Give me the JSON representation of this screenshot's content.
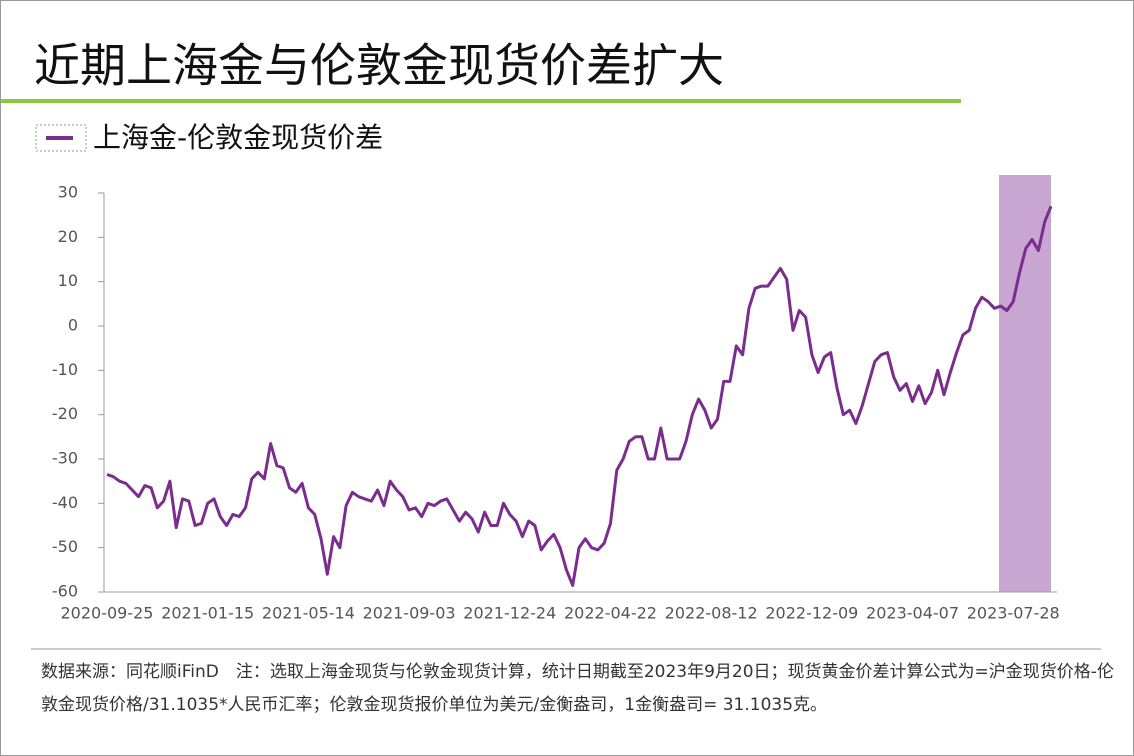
{
  "chart_data": {
    "type": "line",
    "title": "近期上海金与伦敦金现货价差扩大",
    "note": "数据来源：同花顺iFinD　注：选取上海金现货与伦敦金现货计算，统计日期截至2023年9月20日；现货黄金价差计算公式为=沪金现货价格-伦敦金现货价格/31.1035*人民币汇率；伦敦金现货报价单位为美元/金衡盎司，1金衡盎司= 31.1035克。",
    "categories": [
      "2020-09-25",
      null,
      null,
      null,
      null,
      null,
      null,
      null,
      null,
      null,
      null,
      null,
      null,
      null,
      null,
      null,
      "2021-01-15",
      null,
      null,
      null,
      null,
      null,
      null,
      null,
      null,
      null,
      null,
      null,
      null,
      null,
      null,
      null,
      "2021-05-14",
      null,
      null,
      null,
      null,
      null,
      null,
      null,
      null,
      null,
      null,
      null,
      null,
      null,
      null,
      null,
      "2021-09-03",
      null,
      null,
      null,
      null,
      null,
      null,
      null,
      null,
      null,
      null,
      null,
      null,
      null,
      null,
      null,
      "2021-12-24",
      null,
      null,
      null,
      null,
      null,
      null,
      null,
      null,
      null,
      null,
      null,
      null,
      null,
      null,
      null,
      "2022-04-22",
      null,
      null,
      null,
      null,
      null,
      null,
      null,
      null,
      null,
      null,
      null,
      null,
      null,
      null,
      null,
      "2022-08-12",
      null,
      null,
      null,
      null,
      null,
      null,
      null,
      null,
      null,
      null,
      null,
      null,
      null,
      null,
      null,
      "2022-12-09",
      null,
      null,
      null,
      null,
      null,
      null,
      null,
      null,
      null,
      null,
      null,
      null,
      null,
      null,
      null,
      "2023-04-07",
      null,
      null,
      null,
      null,
      null,
      null,
      null,
      null,
      null,
      null,
      null,
      null,
      null,
      null,
      null,
      "2023-07-28",
      null,
      null,
      null,
      null,
      null,
      null
    ],
    "series": [
      {
        "name": "上海金-伦敦金现货价差",
        "color": "#7b2d8e",
        "values": [
          -33.5,
          -34,
          -35,
          -35.5,
          -37,
          -38.5,
          -36,
          -36.5,
          -41,
          -39.5,
          -35,
          -45.5,
          -39,
          -39.5,
          -45,
          -44.5,
          -40,
          -39,
          -43,
          -45,
          -42.5,
          -43,
          -41,
          -34.5,
          -33,
          -34.5,
          -26.5,
          -31.5,
          -32,
          -36.5,
          -37.5,
          -35.5,
          -41,
          -42.5,
          -48,
          -56,
          -47.5,
          -50,
          -40.5,
          -37.5,
          -38.5,
          -39,
          -39.5,
          -37,
          -40.5,
          -35,
          -37,
          -38.5,
          -41.5,
          -41,
          -43,
          -40,
          -40.5,
          -39.5,
          -39,
          -41.5,
          -44,
          -42,
          -43.5,
          -46.5,
          -42,
          -45,
          -45,
          -40,
          -42.5,
          -44,
          -47.5,
          -44,
          -45,
          -50.5,
          -48.5,
          -47,
          -50,
          -55,
          -58.5,
          -50,
          -48,
          -50,
          -50.5,
          -49,
          -44.5,
          -32.5,
          -30,
          -26,
          -25,
          -25,
          -30,
          -30,
          -23,
          -30,
          -30,
          -30,
          -26,
          -20,
          -16.5,
          -19,
          -23,
          -21,
          -12.5,
          -12.5,
          -4.5,
          -6.5,
          4,
          8.5,
          9,
          9,
          11,
          13,
          10.5,
          -1,
          3.5,
          2,
          -6.5,
          -10.5,
          -7,
          -6,
          -14,
          -20,
          -19,
          -22,
          -18,
          -13,
          -8,
          -6.5,
          -6,
          -11.5,
          -14.5,
          -13,
          -17,
          -13.5,
          -17.5,
          -15,
          -10,
          -15.5,
          -10.5,
          -6,
          -2,
          -1,
          4,
          6.5,
          5.5,
          4,
          4.5,
          3.5,
          5.5,
          12,
          17.5,
          19.5,
          17,
          23.5,
          27
        ]
      }
    ],
    "ylim": [
      -60,
      30
    ],
    "yticks": [
      -60,
      -50,
      -40,
      -30,
      -20,
      -10,
      0,
      10,
      20,
      30
    ]
  }
}
